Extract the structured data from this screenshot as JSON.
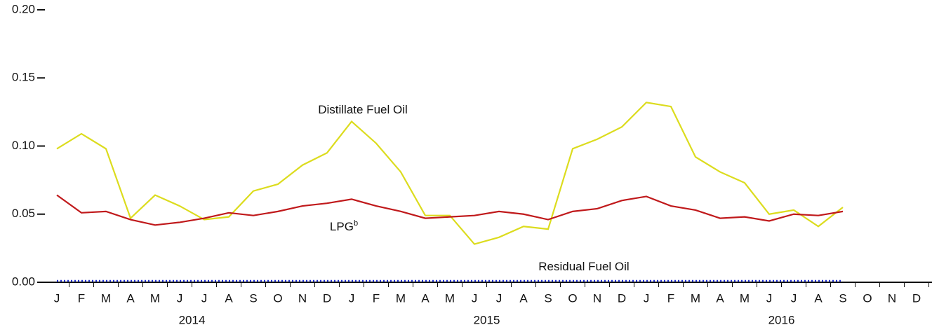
{
  "chart_data": {
    "type": "line",
    "categories": [
      "J",
      "F",
      "M",
      "A",
      "M",
      "J",
      "J",
      "A",
      "S",
      "O",
      "N",
      "D",
      "J",
      "F",
      "M",
      "A",
      "M",
      "J",
      "J",
      "A",
      "S",
      "O",
      "N",
      "D",
      "J",
      "F",
      "M",
      "A",
      "M",
      "J",
      "J",
      "A",
      "S",
      "O",
      "N",
      "D"
    ],
    "year_labels": [
      "2014",
      "2015",
      "2016"
    ],
    "series": [
      {
        "name": "Distillate Fuel Oil",
        "color": "#dcdc1e",
        "values": [
          0.098,
          0.109,
          0.098,
          0.047,
          0.064,
          0.056,
          0.046,
          0.048,
          0.067,
          0.072,
          0.086,
          0.095,
          0.118,
          0.102,
          0.081,
          0.049,
          0.049,
          0.028,
          0.033,
          0.041,
          0.039,
          0.098,
          0.105,
          0.114,
          0.132,
          0.129,
          0.092,
          0.081,
          0.073,
          0.05,
          0.053,
          0.041,
          0.055,
          null,
          null,
          null
        ]
      },
      {
        "name": "LPG",
        "color": "#c0191b",
        "values": [
          0.064,
          0.051,
          0.052,
          0.046,
          0.042,
          0.044,
          0.047,
          0.051,
          0.049,
          0.052,
          0.056,
          0.058,
          0.061,
          0.056,
          0.052,
          0.047,
          0.048,
          0.049,
          0.052,
          0.05,
          0.046,
          0.052,
          0.054,
          0.06,
          0.063,
          0.056,
          0.053,
          0.047,
          0.048,
          0.045,
          0.05,
          0.049,
          0.052,
          null,
          null,
          null
        ]
      },
      {
        "name": "Residual Fuel Oil",
        "color": "#1f2fd6",
        "dashed": true,
        "values": [
          0.001,
          0.001,
          0.001,
          0.001,
          0.001,
          0.001,
          0.001,
          0.001,
          0.001,
          0.001,
          0.001,
          0.001,
          0.001,
          0.001,
          0.001,
          0.001,
          0.001,
          0.001,
          0.001,
          0.001,
          0.001,
          0.001,
          0.001,
          0.001,
          0.001,
          0.001,
          0.001,
          0.001,
          0.001,
          0.001,
          0.001,
          0.001,
          0.001,
          null,
          null,
          null
        ]
      }
    ],
    "annotations": [
      {
        "text": "Distillate Fuel Oil",
        "series": 0
      },
      {
        "text": "LPG",
        "sup": "b",
        "series": 1
      },
      {
        "text": "Residual Fuel Oil",
        "series": 2
      }
    ],
    "ylim": [
      0,
      0.2
    ],
    "yticks": [
      {
        "value": 0,
        "label": "0.00"
      },
      {
        "value": 0.05,
        "label": "0.05"
      },
      {
        "value": 0.1,
        "label": "0.10"
      },
      {
        "value": 0.15,
        "label": "0.15"
      },
      {
        "value": 0.2,
        "label": "0.20"
      }
    ]
  }
}
